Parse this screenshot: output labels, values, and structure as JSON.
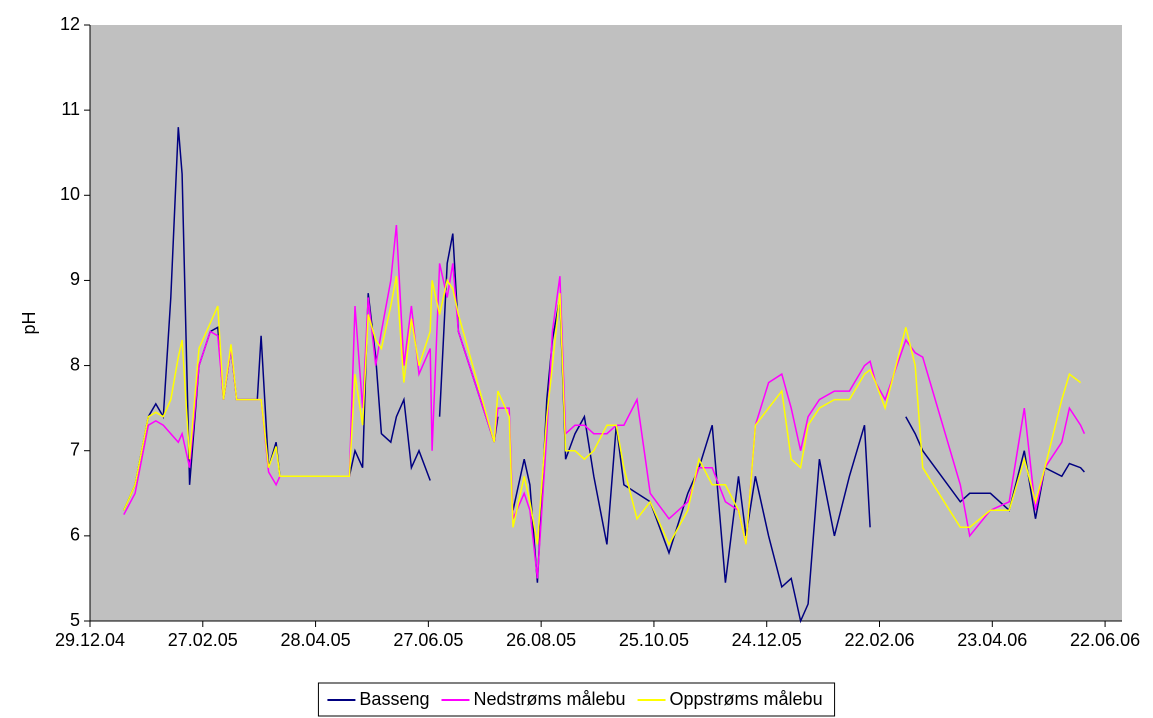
{
  "chart_data": {
    "type": "line",
    "y_label": "pH",
    "x": [
      "2005-01-16",
      "2005-01-22",
      "2005-01-29",
      "2005-02-02",
      "2005-02-06",
      "2005-02-10",
      "2005-02-14",
      "2005-02-16",
      "2005-02-20",
      "2005-02-25",
      "2005-03-03",
      "2005-03-07",
      "2005-03-10",
      "2005-03-14",
      "2005-03-17",
      "2005-03-28",
      "2005-03-30",
      "2005-04-03",
      "2005-04-07",
      "2005-04-09",
      "2005-05-16",
      "2005-05-19",
      "2005-05-23",
      "2005-05-26",
      "2005-05-30",
      "2005-06-02",
      "2005-06-07",
      "2005-06-10",
      "2005-06-14",
      "2005-06-18",
      "2005-06-22",
      "2005-06-28",
      "2005-06-29",
      "2005-07-03",
      "2005-07-07",
      "2005-07-10",
      "2005-07-13",
      "2005-08-01",
      "2005-08-03",
      "2005-08-09",
      "2005-08-11",
      "2005-08-17",
      "2005-08-20",
      "2005-08-24",
      "2005-08-29",
      "2005-09-01",
      "2005-09-05",
      "2005-09-08",
      "2005-09-13",
      "2005-09-18",
      "2005-09-23",
      "2005-09-30",
      "2005-10-05",
      "2005-10-09",
      "2005-10-16",
      "2005-10-23",
      "2005-11-02",
      "2005-11-12",
      "2005-11-18",
      "2005-11-25",
      "2005-12-02",
      "2005-12-09",
      "2005-12-13",
      "2005-12-18",
      "2005-12-25",
      "2006-01-01",
      "2006-01-06",
      "2006-01-11",
      "2006-01-15",
      "2006-01-21",
      "2006-01-29",
      "2006-02-06",
      "2006-02-14",
      "2006-02-17",
      "2006-02-20",
      "2006-02-25",
      "2006-03-08",
      "2006-03-13",
      "2006-03-17",
      "2006-04-06",
      "2006-04-11",
      "2006-04-22",
      "2006-05-02",
      "2006-05-10",
      "2006-05-16",
      "2006-05-21",
      "2006-05-30",
      "2006-06-03",
      "2006-06-09",
      "2006-06-11"
    ],
    "series": [
      {
        "name": "Basseng",
        "color": "#000080",
        "values": [
          6.3,
          6.6,
          7.4,
          7.55,
          7.4,
          8.8,
          10.8,
          10.25,
          6.6,
          8.0,
          8.4,
          8.45,
          7.6,
          8.2,
          7.6,
          7.6,
          8.35,
          6.8,
          7.1,
          6.7,
          6.7,
          7.0,
          6.8,
          8.85,
          8.1,
          7.2,
          7.1,
          7.4,
          7.6,
          6.8,
          7.0,
          6.65,
          null,
          7.4,
          9.2,
          9.55,
          8.4,
          7.1,
          7.4,
          null,
          6.3,
          6.9,
          6.6,
          5.45,
          7.6,
          8.3,
          8.8,
          6.9,
          7.2,
          7.4,
          6.7,
          5.9,
          7.3,
          6.6,
          6.5,
          6.4,
          5.8,
          6.5,
          6.8,
          7.3,
          5.45,
          6.7,
          6.0,
          6.7,
          6.0,
          5.4,
          5.5,
          5.0,
          5.2,
          6.9,
          6.0,
          6.7,
          7.3,
          6.1,
          null,
          null,
          7.4,
          7.2,
          7.0,
          6.4,
          6.5,
          6.5,
          6.3,
          7.0,
          6.2,
          6.8,
          6.7,
          6.85,
          6.8,
          6.75
        ]
      },
      {
        "name": "Nedstrøms målebu",
        "color": "#ff00ff",
        "values": [
          6.25,
          6.5,
          7.3,
          7.35,
          7.3,
          7.2,
          7.1,
          7.2,
          6.8,
          8.0,
          8.4,
          8.35,
          7.6,
          8.2,
          7.6,
          7.6,
          7.6,
          6.75,
          6.6,
          6.7,
          6.7,
          8.7,
          7.5,
          8.8,
          8.0,
          8.4,
          9.0,
          9.65,
          8.0,
          8.7,
          7.9,
          8.2,
          7.0,
          9.2,
          8.8,
          9.2,
          8.4,
          7.1,
          7.5,
          7.5,
          6.2,
          6.5,
          6.3,
          5.5,
          7.2,
          8.4,
          9.05,
          7.2,
          7.3,
          7.3,
          7.2,
          7.2,
          7.3,
          7.3,
          7.6,
          6.5,
          6.2,
          6.4,
          6.8,
          6.8,
          6.4,
          6.3,
          5.9,
          7.3,
          7.8,
          7.9,
          7.5,
          7.0,
          7.4,
          7.6,
          7.7,
          7.7,
          8.0,
          8.05,
          7.8,
          7.6,
          8.3,
          8.15,
          8.1,
          6.6,
          6.0,
          6.3,
          6.4,
          7.5,
          6.3,
          6.8,
          7.1,
          7.5,
          7.3,
          7.2
        ]
      },
      {
        "name": "Oppstrøms målebu",
        "color": "#ffff00",
        "values": [
          6.3,
          6.6,
          7.4,
          7.45,
          7.4,
          7.6,
          8.1,
          8.3,
          6.9,
          8.2,
          8.5,
          8.7,
          7.6,
          8.25,
          7.6,
          7.6,
          7.6,
          6.8,
          7.05,
          6.7,
          6.7,
          7.9,
          7.3,
          8.6,
          8.3,
          8.2,
          8.7,
          9.05,
          7.8,
          8.55,
          8.0,
          8.4,
          9.0,
          8.6,
          9.0,
          8.9,
          8.6,
          7.1,
          7.7,
          7.4,
          6.1,
          6.7,
          6.4,
          5.9,
          7.4,
          8.0,
          8.85,
          7.0,
          7.0,
          6.9,
          7.0,
          7.3,
          7.3,
          6.8,
          6.2,
          6.4,
          5.9,
          6.3,
          6.9,
          6.6,
          6.6,
          6.3,
          5.9,
          7.3,
          7.5,
          7.7,
          6.9,
          6.8,
          7.3,
          7.5,
          7.6,
          7.6,
          7.9,
          7.95,
          7.8,
          7.5,
          8.45,
          8.0,
          6.8,
          6.1,
          6.1,
          6.3,
          6.3,
          6.9,
          6.4,
          6.8,
          7.6,
          7.9,
          7.8,
          null
        ]
      }
    ],
    "xlim": [
      "2004-12-29",
      "2006-07-01"
    ],
    "xticks": [
      {
        "value": "2004-12-29",
        "label": "29.12.04"
      },
      {
        "value": "2005-02-27",
        "label": "27.02.05"
      },
      {
        "value": "2005-04-28",
        "label": "28.04.05"
      },
      {
        "value": "2005-06-27",
        "label": "27.06.05"
      },
      {
        "value": "2005-08-26",
        "label": "26.08.05"
      },
      {
        "value": "2005-10-25",
        "label": "25.10.05"
      },
      {
        "value": "2005-12-24",
        "label": "24.12.05"
      },
      {
        "value": "2006-02-22",
        "label": "22.02.06"
      },
      {
        "value": "2006-04-23",
        "label": "23.04.06"
      },
      {
        "value": "2006-06-22",
        "label": "22.06.06"
      }
    ],
    "ylim": [
      5,
      12
    ],
    "yticks": [
      5,
      6,
      7,
      8,
      9,
      10,
      11,
      12
    ],
    "plot_background": "#c0c0c0",
    "legend": "bottom"
  }
}
